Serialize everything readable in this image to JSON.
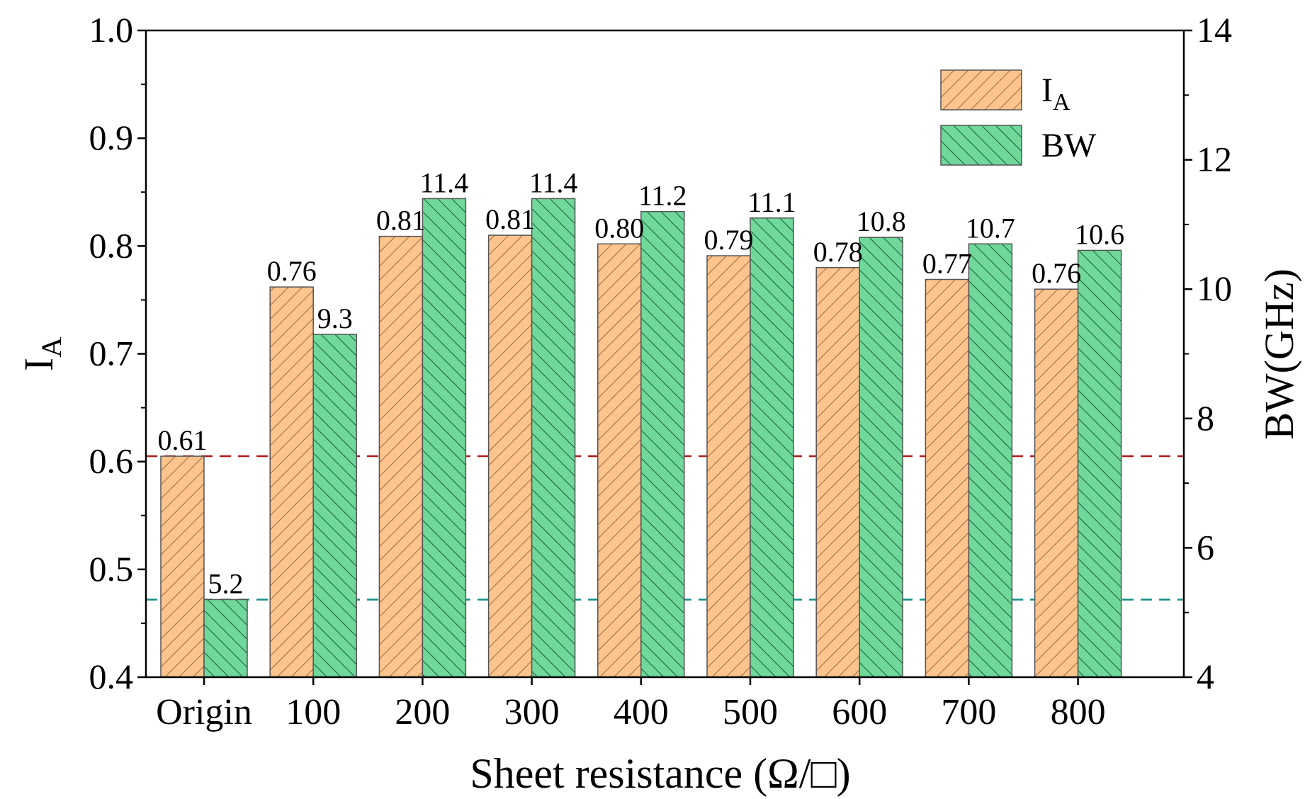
{
  "chart_data": {
    "type": "bar",
    "categories": [
      "Origin",
      "100",
      "200",
      "300",
      "400",
      "500",
      "600",
      "700",
      "800"
    ],
    "xlabel": "Sheet resistance (Ω/□)",
    "ylabel": "I",
    "ylabel_sub": "A",
    "y2label": "BW(GHz)",
    "ylim": [
      0.4,
      1.0
    ],
    "y2lim": [
      4,
      14
    ],
    "yticks": [
      "0.4",
      "0.5",
      "0.6",
      "0.7",
      "0.8",
      "0.9",
      "1.0"
    ],
    "y2ticks": [
      "4",
      "6",
      "8",
      "10",
      "12",
      "14"
    ],
    "series": [
      {
        "name": "I",
        "name_sub": "A",
        "axis": "left",
        "color": "#fdc48e",
        "hatch_color": "#9a6a40",
        "values": [
          0.605,
          0.762,
          0.809,
          0.81,
          0.802,
          0.791,
          0.78,
          0.769,
          0.76
        ],
        "labels": [
          "0.61",
          "0.76",
          "0.81",
          "0.81",
          "0.80",
          "0.79",
          "0.78",
          "0.77",
          "0.76"
        ]
      },
      {
        "name": "BW",
        "name_sub": "",
        "axis": "right",
        "color": "#6fd89a",
        "hatch_color": "#1c5a3c",
        "values": [
          5.2,
          9.3,
          11.4,
          11.4,
          11.2,
          11.1,
          10.8,
          10.7,
          10.6
        ],
        "labels": [
          "5.2",
          "9.3",
          "11.4",
          "11.4",
          "11.2",
          "11.1",
          "10.8",
          "10.7",
          "10.6"
        ]
      }
    ],
    "reference_lines": [
      {
        "axis": "left",
        "value": 0.605,
        "color": "#b01818",
        "style": "dashed"
      },
      {
        "axis": "right",
        "value": 5.2,
        "color": "#14908a",
        "style": "dashed"
      }
    ],
    "legend": "top-right",
    "grid": false
  }
}
